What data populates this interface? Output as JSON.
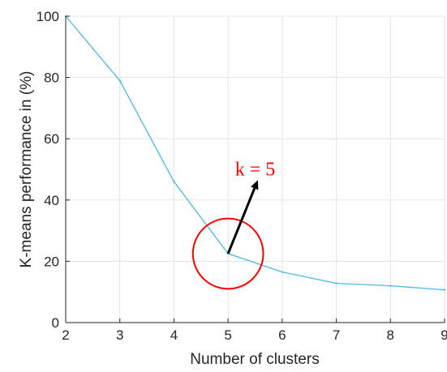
{
  "chart_data": {
    "type": "line",
    "title": "",
    "xlabel": "Number of clusters",
    "ylabel": "K-means performance in (%)",
    "xlim": [
      2,
      9
    ],
    "ylim": [
      0,
      100
    ],
    "x_ticks": [
      "2",
      "3",
      "4",
      "5",
      "6",
      "7",
      "8",
      "9"
    ],
    "y_ticks": [
      "0",
      "20",
      "40",
      "60",
      "80",
      "100"
    ],
    "grid": true,
    "series": [
      {
        "x": [
          2,
          3,
          4,
          5,
          6,
          7,
          8,
          9
        ],
        "values": [
          100,
          79,
          46,
          22.5,
          16.5,
          12.8,
          12,
          10.7
        ],
        "color": "#4db8e8"
      }
    ],
    "annotation": {
      "text": "k = 5",
      "color": "#ff0000",
      "arrow_color": "#000000",
      "point": [
        5,
        22.5
      ],
      "circle_radius_x": 0.65,
      "text_at": [
        5.5,
        48
      ],
      "arrow_tip": [
        5.55,
        46.5
      ]
    }
  }
}
